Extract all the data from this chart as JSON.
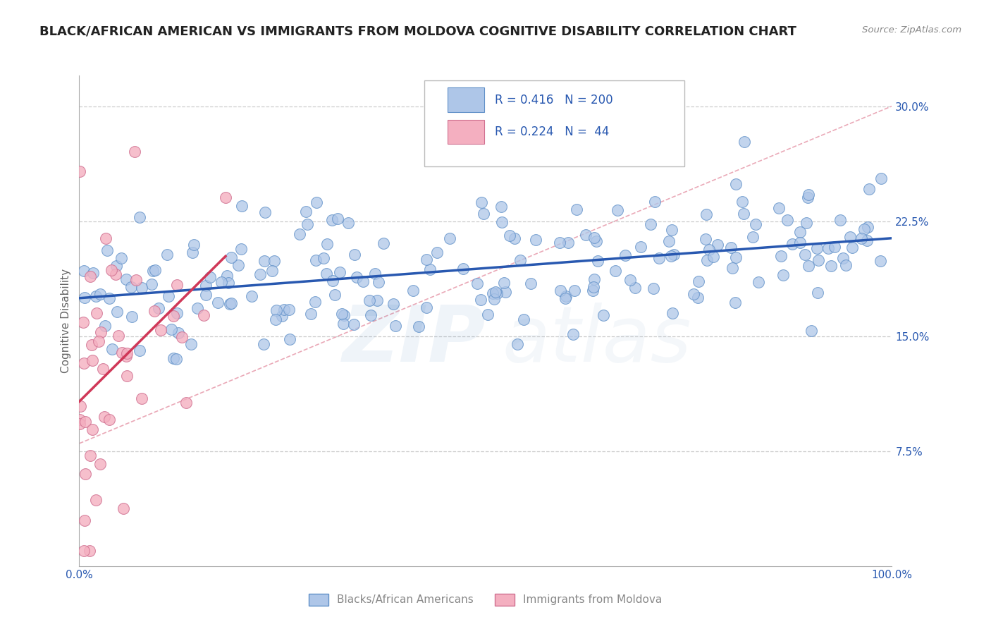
{
  "title": "BLACK/AFRICAN AMERICAN VS IMMIGRANTS FROM MOLDOVA COGNITIVE DISABILITY CORRELATION CHART",
  "source": "Source: ZipAtlas.com",
  "ylabel": "Cognitive Disability",
  "xlim": [
    0,
    100
  ],
  "ylim": [
    0,
    32
  ],
  "yticks": [
    7.5,
    15.0,
    22.5,
    30.0
  ],
  "xticks": [
    0,
    100
  ],
  "xtick_labels": [
    "0.0%",
    "100.0%"
  ],
  "ytick_labels": [
    "7.5%",
    "15.0%",
    "22.5%",
    "30.0%"
  ],
  "blue_R": 0.416,
  "blue_N": 200,
  "pink_R": 0.224,
  "pink_N": 44,
  "blue_color": "#aec6e8",
  "pink_color": "#f4afc0",
  "blue_line_color": "#2858b0",
  "pink_line_color": "#d03858",
  "blue_edge_color": "#6090c8",
  "pink_edge_color": "#d07090",
  "diag_line_color": "#e8a0b0",
  "legend_blue_label": "Blacks/African Americans",
  "legend_pink_label": "Immigrants from Moldova",
  "grid_color": "#cccccc",
  "background_color": "#ffffff",
  "title_fontsize": 13,
  "axis_label_fontsize": 11,
  "tick_fontsize": 11,
  "legend_text_color": "#2858b0",
  "tick_color": "#2858b0",
  "source_color": "#888888",
  "ylabel_color": "#666666"
}
